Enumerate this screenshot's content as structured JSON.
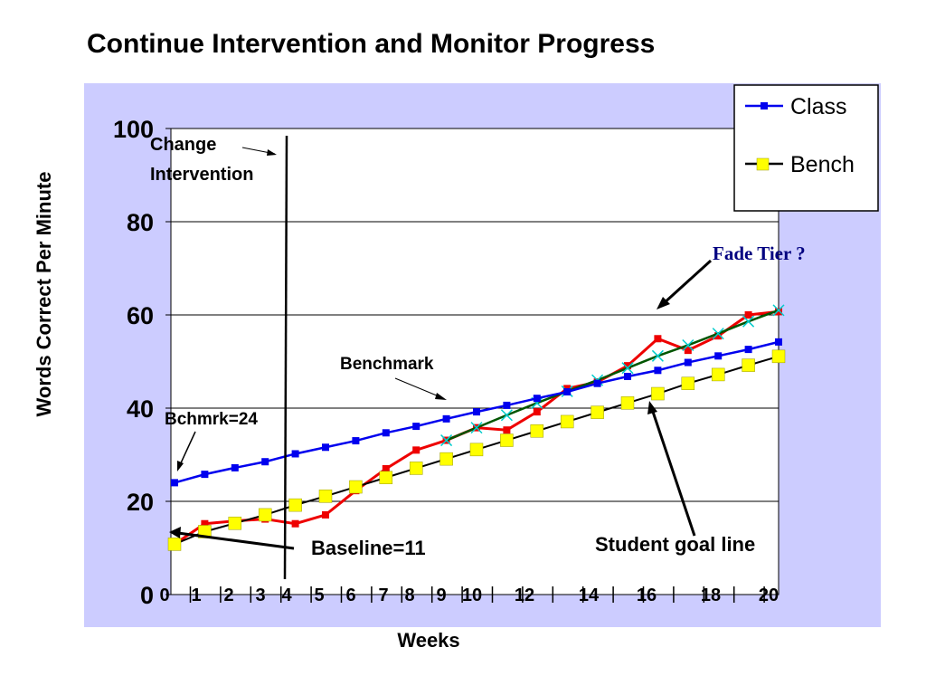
{
  "title": "Continue Intervention and Monitor Progress",
  "colors": {
    "plot_background": "#CCCCFF",
    "class_line": "#0000EE",
    "bench_fill": "#FFFF00",
    "bench_line": "#000000",
    "student_line": "#EE0000",
    "goal_line": "#005500",
    "goal_marker": "#00CCCC",
    "fade_tier_text": "#000080"
  },
  "chart_data": {
    "type": "line",
    "xlabel": "Weeks",
    "ylabel": "Words Correct Per Minute",
    "xlim": [
      0,
      20
    ],
    "ylim": [
      0,
      100
    ],
    "y_ticks": [
      0,
      20,
      40,
      60,
      80,
      100
    ],
    "x_tick_labels": [
      "0",
      "1",
      "2",
      "3",
      "4",
      "5",
      "6",
      "7",
      "8",
      "9",
      "10",
      "12",
      "14",
      "16",
      "18",
      "20"
    ],
    "grid": "horizontal",
    "legend_position": "top-right",
    "series": [
      {
        "name": "Class",
        "marker": "square",
        "x": [
          0,
          1,
          2,
          3,
          4,
          5,
          6,
          7,
          8,
          9,
          10,
          11,
          12,
          13,
          14,
          15,
          16,
          17,
          18,
          19,
          20
        ],
        "values": [
          24,
          25.8,
          27.2,
          28.5,
          30.2,
          31.6,
          33,
          34.7,
          36.1,
          37.7,
          39.2,
          40.6,
          42.1,
          43.5,
          45.3,
          46.8,
          48.1,
          49.8,
          51.2,
          52.6,
          54.2
        ]
      },
      {
        "name": "Bench",
        "marker": "square",
        "x": [
          0,
          1,
          2,
          3,
          4,
          5,
          6,
          7,
          8,
          9,
          10,
          11,
          12,
          13,
          14,
          15,
          16,
          17,
          18,
          19,
          20
        ],
        "values": [
          10.8,
          13.5,
          15.3,
          17.1,
          19.2,
          21.1,
          23.1,
          25.1,
          27.1,
          29.1,
          31.1,
          33.1,
          35.1,
          37.1,
          39.1,
          41.1,
          43.1,
          45.3,
          47.2,
          49.2,
          51.1
        ]
      },
      {
        "x": [
          0,
          1,
          2,
          3,
          4,
          5,
          6,
          7,
          8,
          9,
          10,
          11,
          12,
          13,
          14,
          15,
          16,
          17,
          18,
          19,
          20
        ],
        "values": [
          10.8,
          15.2,
          15.8,
          16.2,
          15.2,
          17.1,
          22.3,
          27,
          31,
          33.1,
          35.8,
          35.3,
          39.2,
          44.2,
          45.6,
          49.1,
          54.9,
          52.4,
          55.5,
          60,
          60.7
        ]
      },
      {
        "marker": "x",
        "x": [
          9,
          10,
          11,
          12,
          13,
          14,
          15,
          16,
          17,
          18,
          19,
          20
        ],
        "values": [
          33.1,
          35.8,
          38.5,
          41.1,
          43.6,
          46,
          48.6,
          51.2,
          53.5,
          56,
          58.6,
          61
        ]
      }
    ],
    "annotations": {
      "change_intervention_line1": "Change",
      "change_intervention_line2": "Intervention",
      "benchmark": "Benchmark",
      "bchmrk": "Bchmrk=24",
      "baseline": "Baseline=11",
      "fade_tier": "Fade Tier ?",
      "student_goal_line": "Student goal line"
    }
  }
}
